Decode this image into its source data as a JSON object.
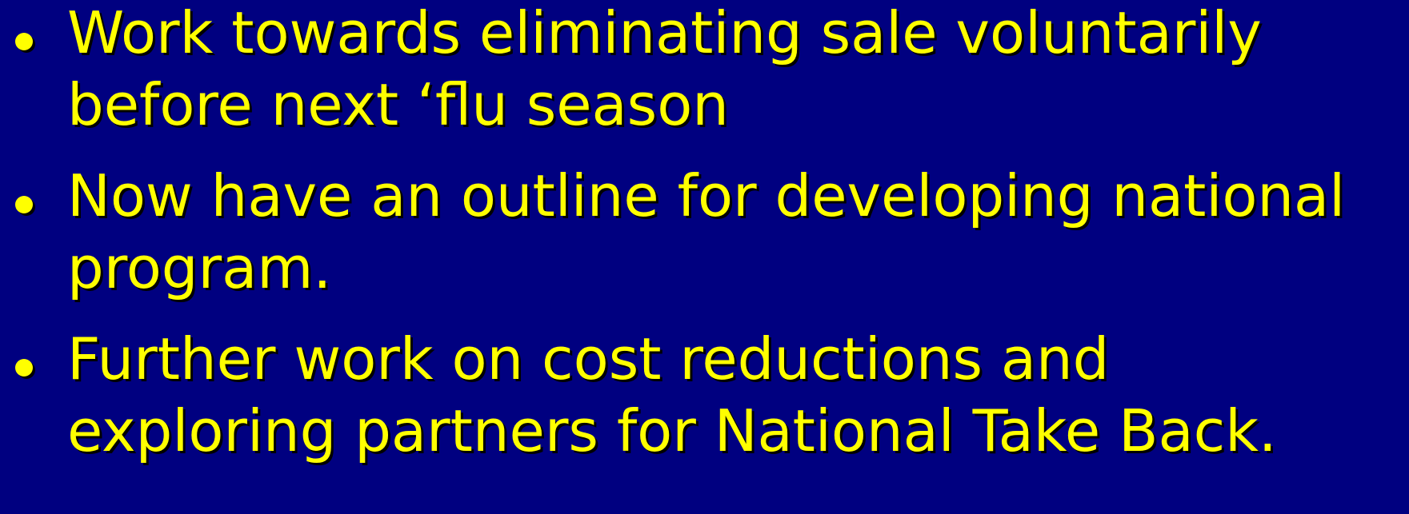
{
  "bullets": [
    {
      "lines": [
        "Work towards eliminating sale voluntarily",
        "before next ‘flu season"
      ]
    },
    {
      "lines": [
        "Now have an outline for developing national",
        "program."
      ]
    },
    {
      "lines": [
        "Further work on cost reductions and",
        "exploring partners for National Take Back."
      ]
    }
  ]
}
